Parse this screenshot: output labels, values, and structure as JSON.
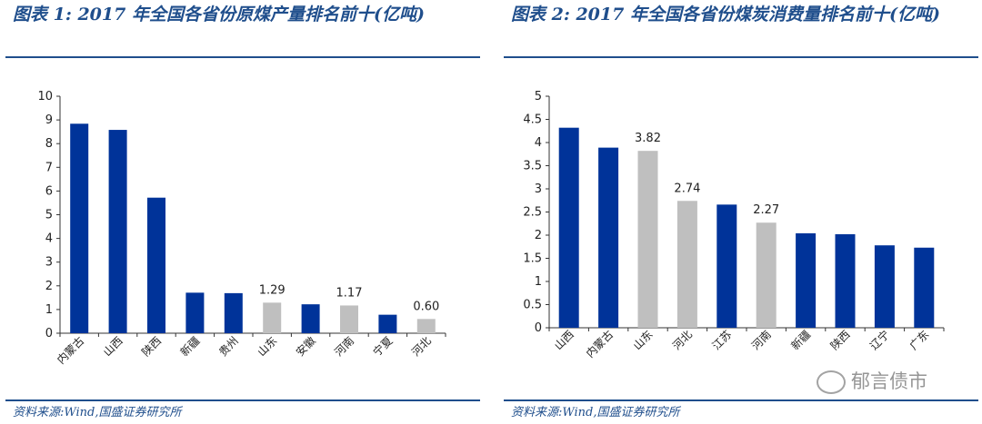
{
  "charts": [
    {
      "figure_title": "图表 1: 2017 年全国各省份原煤产量排名前十(亿吨)",
      "source": "资料来源:Wind,国盛证券研究所"
    },
    {
      "figure_title": "图表 2: 2017 年全国各省份煤炭消费量排名前十(亿吨)",
      "source": "资料来源:Wind,国盛证券研究所"
    }
  ],
  "chart_data": [
    {
      "type": "bar",
      "categories": [
        "内蒙古",
        "山西",
        "陕西",
        "新疆",
        "贵州",
        "山东",
        "安徽",
        "河南",
        "宁夏",
        "河北"
      ],
      "values": [
        8.84,
        8.58,
        5.72,
        1.71,
        1.69,
        1.29,
        1.22,
        1.17,
        0.78,
        0.6
      ],
      "data_labels": [
        "",
        "",
        "",
        "",
        "",
        "1.29",
        "",
        "1.17",
        "",
        "0.60"
      ],
      "highlighted": [
        false,
        false,
        false,
        false,
        false,
        true,
        false,
        true,
        false,
        true
      ],
      "ylim": [
        0,
        10
      ],
      "yticks": [
        0,
        1,
        2,
        3,
        4,
        5,
        6,
        7,
        8,
        9,
        10
      ],
      "grid": false,
      "colors": {
        "main": "#003399",
        "highlight": "#bfbfbf",
        "axis": "#333333"
      }
    },
    {
      "type": "bar",
      "categories": [
        "山西",
        "内蒙古",
        "山东",
        "河北",
        "江苏",
        "河南",
        "新疆",
        "陕西",
        "辽宁",
        "广东"
      ],
      "values": [
        4.32,
        3.89,
        3.82,
        2.74,
        2.66,
        2.27,
        2.04,
        2.02,
        1.78,
        1.73
      ],
      "data_labels": [
        "",
        "",
        "3.82",
        "2.74",
        "",
        "2.27",
        "",
        "",
        "",
        ""
      ],
      "highlighted": [
        false,
        false,
        true,
        true,
        false,
        true,
        false,
        false,
        false,
        false
      ],
      "ylim": [
        0,
        5
      ],
      "yticks": [
        0,
        0.5,
        1,
        1.5,
        2,
        2.5,
        3,
        3.5,
        4,
        4.5,
        5
      ],
      "grid": false,
      "colors": {
        "main": "#003399",
        "highlight": "#bfbfbf",
        "axis": "#333333"
      }
    }
  ],
  "watermark": {
    "text": "郁言债市",
    "icon": "wechat-icon"
  }
}
